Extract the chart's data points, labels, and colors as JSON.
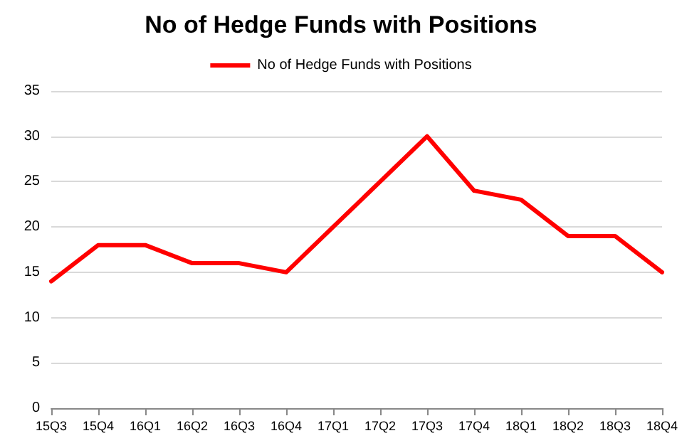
{
  "chart_data": {
    "type": "line",
    "title": "No of Hedge Funds with Positions",
    "categories": [
      "15Q3",
      "15Q4",
      "16Q1",
      "16Q2",
      "16Q3",
      "16Q4",
      "17Q1",
      "17Q2",
      "17Q3",
      "17Q4",
      "18Q1",
      "18Q2",
      "18Q3",
      "18Q4"
    ],
    "series": [
      {
        "name": "No of Hedge Funds with Positions",
        "color": "#ff0000",
        "values": [
          14,
          18,
          18,
          16,
          16,
          15,
          20,
          25,
          30,
          24,
          23,
          19,
          19,
          15
        ]
      }
    ],
    "ylim": [
      0,
      35
    ],
    "yticks": [
      0,
      5,
      10,
      15,
      20,
      25,
      30,
      35
    ],
    "grid": "y",
    "legend": "top",
    "marker": "none",
    "line_style": "solid"
  }
}
